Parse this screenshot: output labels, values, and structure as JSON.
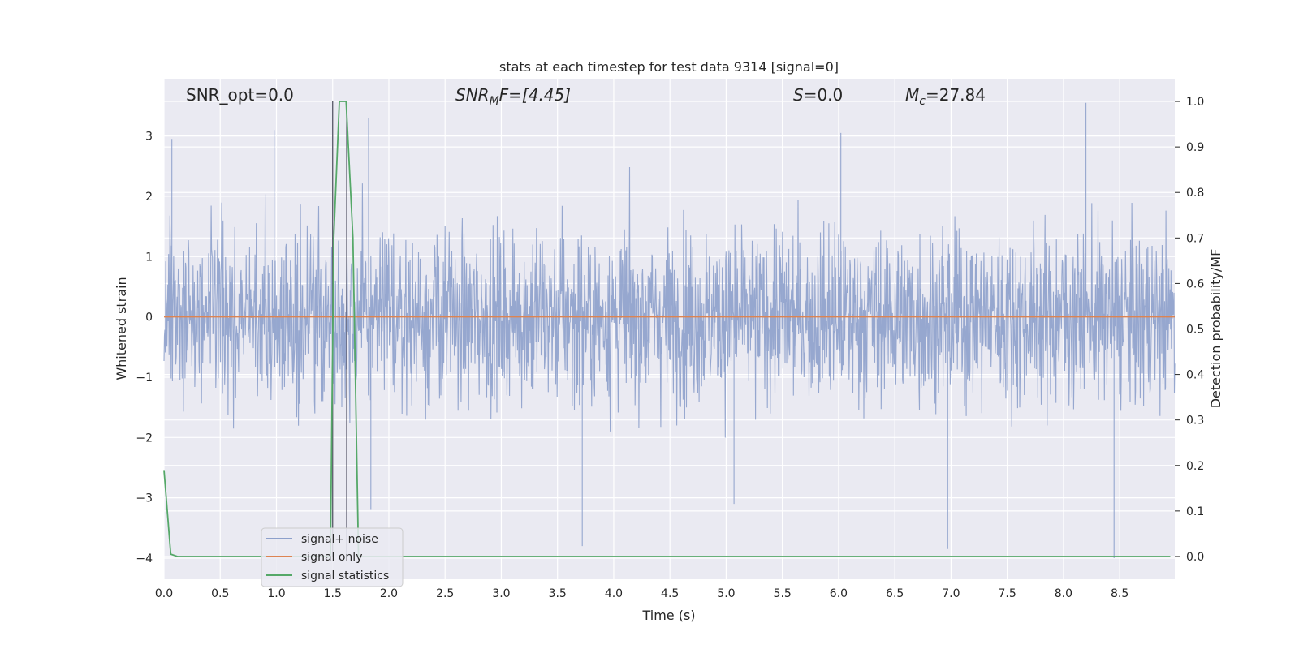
{
  "chart_data": {
    "type": "line",
    "title": "stats at each timestep for test data 9314 [signal=0]",
    "xlabel": "Time (s)",
    "ylabel_left": "Whitened strain",
    "ylabel_right": "Detection probability/MF",
    "xlim": [
      0.0,
      8.99
    ],
    "ylim_left": [
      -4.35,
      3.95
    ],
    "ylim_right": [
      -0.05,
      1.05
    ],
    "xticks": [
      "0.0",
      "0.5",
      "1.0",
      "1.5",
      "2.0",
      "2.5",
      "3.0",
      "3.5",
      "4.0",
      "4.5",
      "5.0",
      "5.5",
      "6.0",
      "6.5",
      "7.0",
      "7.5",
      "8.0",
      "8.5"
    ],
    "yticks_left": [
      "3",
      "2",
      "1",
      "0",
      "−1",
      "−2",
      "−3",
      "−4"
    ],
    "yticks_right": [
      "1.0",
      "0.9",
      "0.8",
      "0.7",
      "0.6",
      "0.5",
      "0.4",
      "0.3",
      "0.2",
      "0.1",
      "0.0"
    ],
    "grid": true,
    "annotations": {
      "snr_opt": "SNR_opt=0.0",
      "snr_mf_base": "SNR",
      "snr_mf_sub": "M",
      "snr_mf_rest": "F=[4.45]",
      "s_italic": "S",
      "s_rest": "=0.0",
      "mc_base": "M",
      "mc_sub": "c",
      "mc_rest": "=27.84"
    },
    "vlines": [
      1.5,
      1.625
    ],
    "series": [
      {
        "name": "signal+ noise",
        "axis": "left",
        "color": "#8da0cb",
        "description_points": [],
        "x_range": [
          0.0,
          8.99
        ],
        "value_range": [
          -4.0,
          3.55
        ],
        "peaks": [
          [
            0.07,
            2.95
          ],
          [
            0.98,
            3.1
          ],
          [
            1.82,
            3.3
          ],
          [
            6.02,
            3.05
          ],
          [
            8.2,
            3.55
          ]
        ],
        "troughs": [
          [
            3.72,
            -3.8
          ],
          [
            5.07,
            -3.1
          ],
          [
            6.97,
            -3.85
          ],
          [
            8.45,
            -4.0
          ],
          [
            1.84,
            -3.2
          ]
        ]
      },
      {
        "name": "signal only",
        "axis": "left",
        "color": "#dd8452",
        "x": [
          0.0,
          8.99
        ],
        "y": [
          0.0,
          0.0
        ]
      },
      {
        "name": "signal statistics",
        "axis": "right",
        "color": "#55a868",
        "x": [
          0.0,
          0.06,
          0.12,
          0.5,
          1.0,
          1.48,
          1.51,
          1.56,
          1.62,
          1.68,
          1.73,
          1.8,
          2.5,
          5.0,
          8.95
        ],
        "y": [
          0.19,
          0.005,
          0.0,
          0.0,
          0.0,
          0.0,
          0.7,
          1.0,
          1.0,
          0.7,
          0.0,
          0.0,
          0.0,
          0.0,
          0.0
        ]
      }
    ],
    "legend": {
      "placement": "lower-left",
      "entries": [
        "signal+ noise",
        "signal only",
        "signal statistics"
      ]
    }
  }
}
